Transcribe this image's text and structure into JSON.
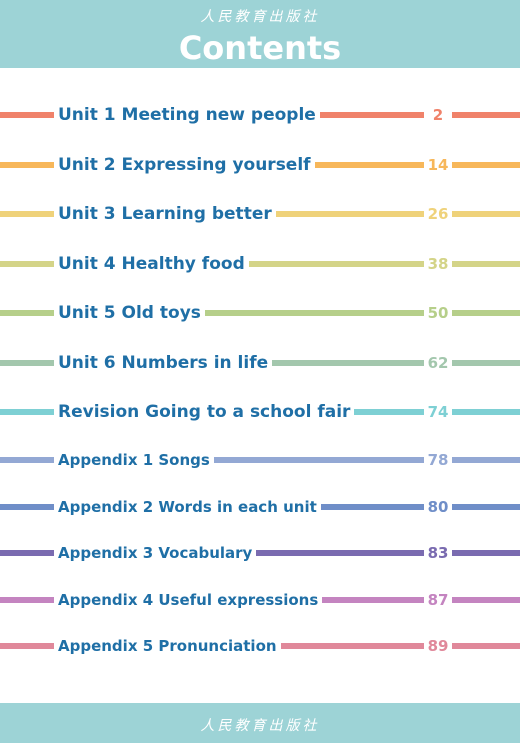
{
  "header": {
    "publisher": "人民教育出版社",
    "title": "Contents"
  },
  "footer": {
    "publisher": "人民教育出版社"
  },
  "toc": [
    {
      "label": "Unit 1  Meeting new people",
      "page": "2",
      "color": "#f0826a"
    },
    {
      "label": "Unit 2  Expressing yourself",
      "page": "14",
      "color": "#f7b75a"
    },
    {
      "label": "Unit 3  Learning better",
      "page": "26",
      "color": "#efd27a"
    },
    {
      "label": "Unit 4  Healthy food",
      "page": "38",
      "color": "#d4d488"
    },
    {
      "label": "Unit 5  Old toys",
      "page": "50",
      "color": "#b6cf8a"
    },
    {
      "label": "Unit 6  Numbers in life",
      "page": "62",
      "color": "#a3c7ad"
    },
    {
      "label": "Revision  Going to a school fair",
      "page": "74",
      "color": "#7ed0d4"
    },
    {
      "label": "Appendix 1  Songs",
      "page": "78",
      "color": "#93a8d4"
    },
    {
      "label": "Appendix 2  Words in each unit",
      "page": "80",
      "color": "#6f8ec8"
    },
    {
      "label": "Appendix 3  Vocabulary",
      "page": "83",
      "color": "#7a6bb0"
    },
    {
      "label": "Appendix 4  Useful expressions",
      "page": "87",
      "color": "#c484c0"
    },
    {
      "label": "Appendix 5  Pronunciation",
      "page": "89",
      "color": "#e0889a"
    }
  ]
}
